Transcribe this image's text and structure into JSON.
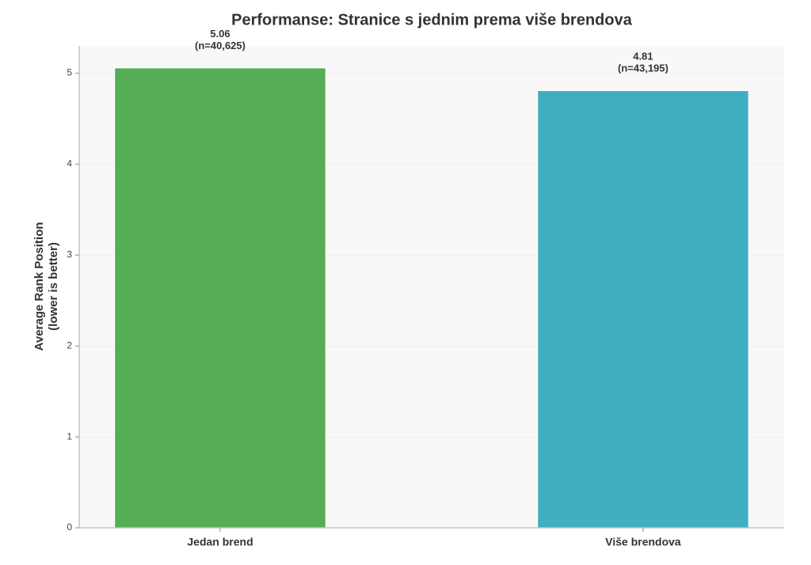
{
  "chart_data": {
    "type": "bar",
    "title": "Performanse: Stranice s jednim prema više brendova",
    "ylabel": [
      "Average Rank Position",
      "(lower is better)"
    ],
    "categories": [
      "Jedan brend",
      "Više brendova"
    ],
    "values": [
      5.06,
      4.81
    ],
    "sample_labels": [
      "(n=40,625)",
      "(n=43,195)"
    ],
    "colors": [
      "#55ad55",
      "#41adc0"
    ],
    "ylim": [
      0,
      5.3
    ],
    "yticks": [
      0,
      1,
      2,
      3,
      4,
      5
    ],
    "grid": true
  }
}
